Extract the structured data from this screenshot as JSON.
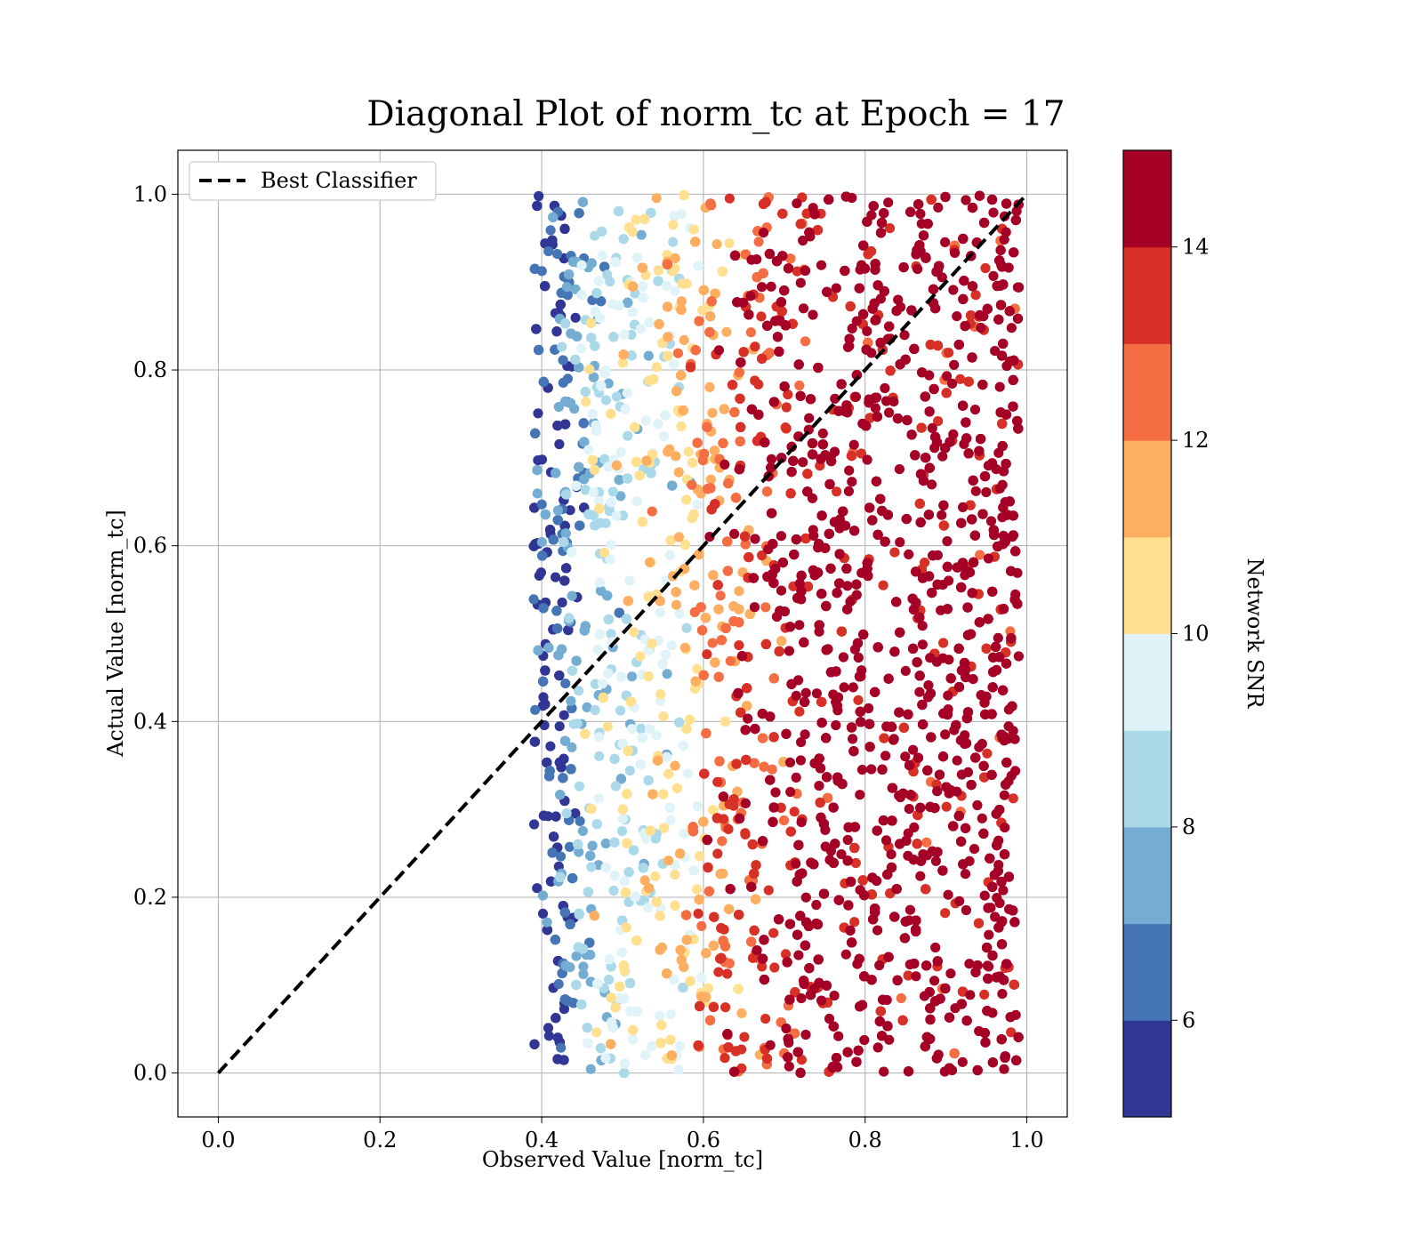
{
  "chart_data": {
    "type": "scatter",
    "title": "Diagonal Plot of norm_tc at Epoch = 17",
    "xlabel": "Observed Value [norm_tc]",
    "ylabel": "Actual Value [norm_tc]",
    "xlim": [
      -0.05,
      1.05
    ],
    "ylim": [
      -0.05,
      1.05
    ],
    "xticks": [
      "0.0",
      "0.2",
      "0.4",
      "0.6",
      "0.8",
      "1.0"
    ],
    "yticks": [
      "0.0",
      "0.2",
      "0.4",
      "0.6",
      "0.8",
      "1.0"
    ],
    "grid": true,
    "legend": {
      "position": "top-left",
      "entries": [
        "Best Classifier"
      ]
    },
    "diagonal": {
      "name": "Best Classifier",
      "x": [
        0.0,
        1.0
      ],
      "y": [
        0.0,
        1.0
      ],
      "style": "dashed",
      "color": "#000000"
    },
    "scatter_region": {
      "x_range": [
        0.39,
        0.99
      ],
      "y_range": [
        0.0,
        1.0
      ]
    },
    "colorbar": {
      "label": "Network SNR",
      "range": [
        5,
        15
      ],
      "ticks": [
        "6",
        "8",
        "10",
        "12",
        "14"
      ],
      "colors": [
        "#313695",
        "#4575b4",
        "#74add1",
        "#abd9e9",
        "#e0f3f8",
        "#fee090",
        "#fdae61",
        "#f46d43",
        "#d73027",
        "#a50026"
      ]
    },
    "snr_by_observed_value": [
      {
        "x": 0.4,
        "snr": 5.5
      },
      {
        "x": 0.43,
        "snr": 6.5
      },
      {
        "x": 0.46,
        "snr": 8.5
      },
      {
        "x": 0.52,
        "snr": 9.5
      },
      {
        "x": 0.57,
        "snr": 10.5
      },
      {
        "x": 0.62,
        "snr": 12.5
      },
      {
        "x": 0.67,
        "snr": 13.5
      },
      {
        "x": 0.72,
        "snr": 14.5
      },
      {
        "x": 0.99,
        "snr": 14.5
      }
    ]
  }
}
